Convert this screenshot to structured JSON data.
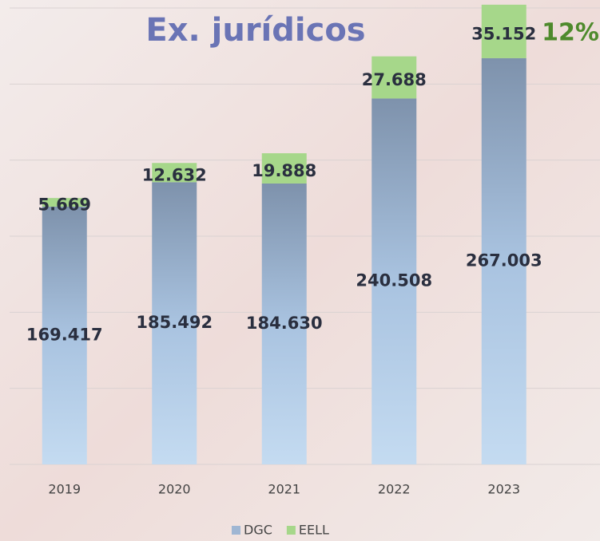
{
  "chart_data": {
    "type": "stacked_bar",
    "title": "Ex. jurídicos",
    "annotation": "12%",
    "categories": [
      "2019",
      "2020",
      "2021",
      "2022",
      "2023"
    ],
    "series": [
      {
        "name": "DGC",
        "color": "#9fb6d3",
        "values": [
          169417,
          185492,
          184630,
          240508,
          267003
        ],
        "value_labels": [
          "169.417",
          "185.492",
          "184.630",
          "240.508",
          "267.003"
        ]
      },
      {
        "name": "EELL",
        "color": "#a6d78a",
        "values": [
          5669,
          12632,
          19888,
          27688,
          35152
        ],
        "value_labels": [
          "5.669",
          "12.632",
          "19.888",
          "27.688",
          "35.152"
        ]
      }
    ],
    "ylim": [
      0,
      300000
    ],
    "yticks": [
      0,
      50000,
      100000,
      150000,
      200000,
      250000,
      300000
    ],
    "grid": true,
    "legend": "bottom"
  }
}
